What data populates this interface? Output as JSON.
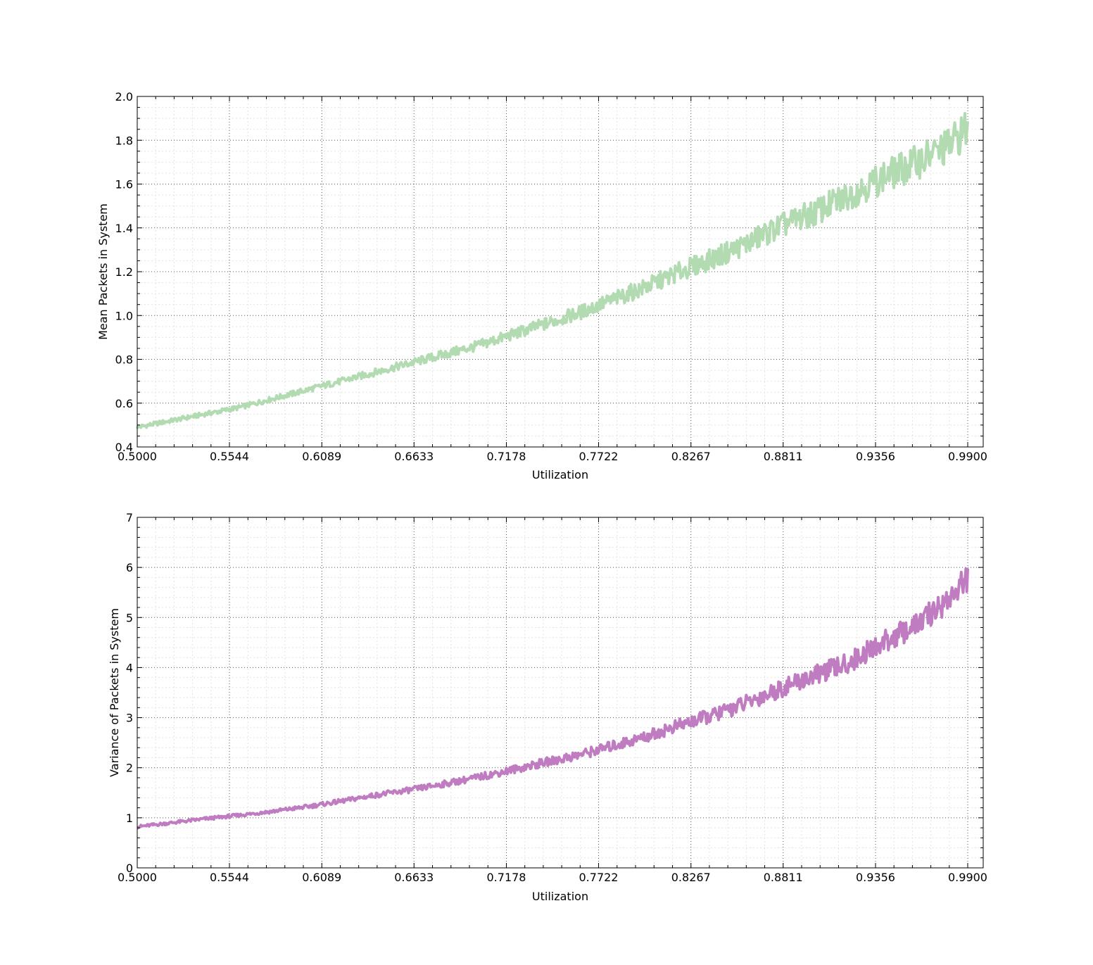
{
  "chart_data": [
    {
      "type": "line",
      "title": "",
      "xlabel": "Utilization",
      "ylabel": "Mean Packets in System",
      "xlim": [
        0.5,
        0.99
      ],
      "ylim": [
        0.4,
        2.0
      ],
      "xticks": [
        0.5,
        0.5544,
        0.6089,
        0.6633,
        0.7178,
        0.7722,
        0.8267,
        0.8811,
        0.9356,
        0.99
      ],
      "xtick_labels": [
        "0.5000",
        "0.5544",
        "0.6089",
        "0.6633",
        "0.7178",
        "0.7722",
        "0.8267",
        "0.8811",
        "0.9356",
        "0.9900"
      ],
      "yticks": [
        0.4,
        0.6,
        0.8,
        1.0,
        1.2,
        1.4,
        1.6,
        1.8,
        2.0
      ],
      "ytick_labels": [
        "0.4",
        "0.6",
        "0.8",
        "1.0",
        "1.2",
        "1.4",
        "1.6",
        "1.8",
        "2.0"
      ],
      "grid": true,
      "minor_grid": true,
      "color": "#b2dbb2",
      "series": [
        {
          "x": [
            0.5,
            0.52,
            0.54,
            0.56,
            0.58,
            0.6,
            0.62,
            0.64,
            0.66,
            0.68,
            0.7,
            0.72,
            0.74,
            0.76,
            0.78,
            0.8,
            0.82,
            0.84,
            0.86,
            0.88,
            0.9,
            0.92,
            0.94,
            0.96,
            0.98,
            0.99
          ],
          "values": [
            0.49,
            0.52,
            0.55,
            0.58,
            0.62,
            0.66,
            0.7,
            0.74,
            0.78,
            0.82,
            0.86,
            0.91,
            0.96,
            1.01,
            1.07,
            1.13,
            1.2,
            1.26,
            1.33,
            1.41,
            1.47,
            1.55,
            1.63,
            1.7,
            1.78,
            1.86
          ]
        }
      ]
    },
    {
      "type": "line",
      "title": "",
      "xlabel": "Utilization",
      "ylabel": "Variance of Packets in System",
      "xlim": [
        0.5,
        0.99
      ],
      "ylim": [
        0,
        7
      ],
      "xticks": [
        0.5,
        0.5544,
        0.6089,
        0.6633,
        0.7178,
        0.7722,
        0.8267,
        0.8811,
        0.9356,
        0.99
      ],
      "xtick_labels": [
        "0.5000",
        "0.5544",
        "0.6089",
        "0.6633",
        "0.7178",
        "0.7722",
        "0.8267",
        "0.8811",
        "0.9356",
        "0.9900"
      ],
      "yticks": [
        0,
        1,
        2,
        3,
        4,
        5,
        6,
        7
      ],
      "ytick_labels": [
        "0",
        "1",
        "2",
        "3",
        "4",
        "5",
        "6",
        "7"
      ],
      "grid": true,
      "minor_grid": true,
      "color": "#c07cc0",
      "series": [
        {
          "x": [
            0.5,
            0.52,
            0.54,
            0.56,
            0.58,
            0.6,
            0.62,
            0.64,
            0.66,
            0.68,
            0.7,
            0.72,
            0.74,
            0.76,
            0.78,
            0.8,
            0.82,
            0.84,
            0.86,
            0.88,
            0.9,
            0.92,
            0.94,
            0.96,
            0.98,
            0.99
          ],
          "values": [
            0.82,
            0.9,
            0.98,
            1.05,
            1.13,
            1.22,
            1.33,
            1.45,
            1.55,
            1.67,
            1.8,
            1.95,
            2.1,
            2.25,
            2.43,
            2.62,
            2.85,
            3.05,
            3.3,
            3.58,
            3.85,
            4.1,
            4.5,
            4.85,
            5.4,
            5.8
          ]
        }
      ]
    }
  ]
}
